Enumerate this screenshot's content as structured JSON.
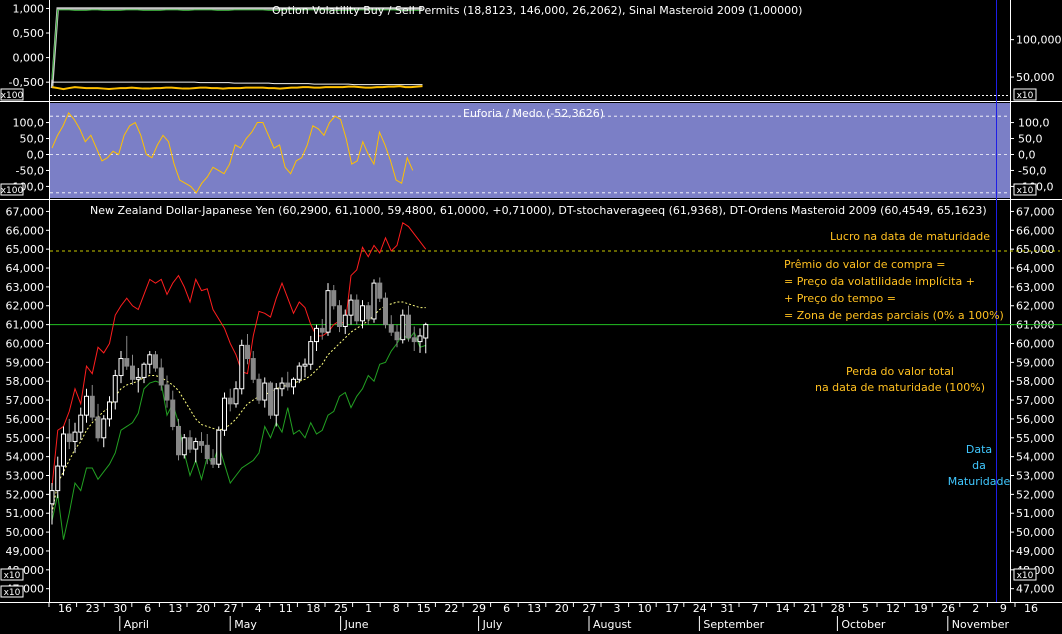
{
  "colors": {
    "background": "#000000",
    "panel_euforia": "#7b7fc6",
    "candle_up": "#ffffff",
    "candle_down": "#888888",
    "upper_band": "#ff1e1e",
    "lower_band": "#22a022",
    "midline": "#ffff80",
    "level_line": "#22c022",
    "target_line": "#c8c800",
    "maturity_line": "#1e1ee6",
    "annotation": "#ffc020",
    "maturity_text": "#40c8ff"
  },
  "chart_data": [
    {
      "id": "option_volatility",
      "type": "line",
      "title": "Option Volatility Buy / Sell Permits (18,8123, 146,000, 26,2062), Sinal Masteroid 2009 (1,00000)",
      "left_axis": {
        "ylim": [
          -0.7,
          1.05
        ],
        "ticks": [
          "1,000",
          "0,500",
          "0,000",
          "-0,500"
        ],
        "tick_values": [
          1.0,
          0.5,
          0.0,
          -0.5
        ],
        "multiplier": "x100"
      },
      "right_axis": {
        "ylim": [
          30,
          145
        ],
        "ticks": [
          "100,000",
          "50,000"
        ],
        "tick_values": [
          100,
          50
        ],
        "multiplier": "x10"
      },
      "series": [
        {
          "color": "#c8c8c8",
          "values": [
            -0.62,
            1.0,
            1.0,
            1.0,
            1.0,
            1.0,
            1.0,
            1.0,
            1.0,
            1.0,
            1.0,
            1.0,
            1.0,
            1.0,
            1.0,
            1.0,
            1.0,
            1.0,
            1.0,
            1.0,
            1.0,
            1.0,
            1.0,
            1.0,
            1.0,
            1.0,
            1.0,
            1.0,
            1.0,
            1.0,
            1.0,
            1.0,
            1.0,
            1.0,
            1.0,
            1.0,
            1.0,
            1.0,
            1.0,
            1.0,
            1.0,
            1.0,
            1.0,
            1.0,
            1.0,
            1.0,
            1.0,
            1.0,
            1.0,
            1.0,
            1.0,
            1.0,
            1.0,
            1.0,
            1.0,
            1.0,
            1.0,
            1.0,
            1.0,
            1.0,
            1.0,
            1.0,
            1.0,
            1.0,
            1.0,
            1.0
          ]
        },
        {
          "color": "#40b040",
          "values": [
            -0.45,
            0.97,
            0.97,
            0.97,
            0.96,
            0.96,
            0.96,
            0.97,
            0.97,
            0.96,
            0.96,
            0.96,
            0.96,
            0.97,
            0.97,
            0.97,
            0.96,
            0.96,
            0.96,
            0.96,
            0.97,
            0.97,
            0.97,
            0.96,
            0.96,
            0.97,
            0.97,
            0.97,
            0.97,
            0.96,
            0.96,
            0.96,
            0.97,
            0.97,
            0.97,
            0.97,
            0.97,
            0.97,
            0.96,
            0.96,
            0.96,
            0.97,
            0.97,
            0.97,
            0.97,
            0.97,
            0.97,
            0.97,
            0.97,
            0.96,
            0.96,
            0.96,
            0.96,
            0.97,
            0.97,
            0.97,
            0.97,
            0.97,
            0.97,
            0.97,
            0.97,
            0.96,
            0.96,
            0.96,
            0.96,
            0.96
          ]
        },
        {
          "color": "#f0f0f0",
          "values": [
            -0.5,
            -0.5,
            -0.5,
            -0.5,
            -0.5,
            -0.5,
            -0.5,
            -0.5,
            -0.5,
            -0.5,
            -0.5,
            -0.5,
            -0.5,
            -0.5,
            -0.5,
            -0.5,
            -0.5,
            -0.5,
            -0.5,
            -0.5,
            -0.5,
            -0.5,
            -0.5,
            -0.5,
            -0.5,
            -0.5,
            -0.51,
            -0.51,
            -0.51,
            -0.51,
            -0.51,
            -0.51,
            -0.52,
            -0.52,
            -0.52,
            -0.52,
            -0.52,
            -0.52,
            -0.52,
            -0.53,
            -0.53,
            -0.53,
            -0.53,
            -0.53,
            -0.53,
            -0.53,
            -0.54,
            -0.54,
            -0.54,
            -0.54,
            -0.54,
            -0.54,
            -0.54,
            -0.55,
            -0.55,
            -0.55,
            -0.55,
            -0.55,
            -0.55,
            -0.55,
            -0.55,
            -0.55,
            -0.55,
            -0.55,
            -0.55,
            -0.55
          ]
        },
        {
          "color": "#ffc000",
          "values": [
            -0.6,
            -0.62,
            -0.64,
            -0.62,
            -0.6,
            -0.61,
            -0.62,
            -0.62,
            -0.62,
            -0.63,
            -0.64,
            -0.63,
            -0.62,
            -0.62,
            -0.61,
            -0.62,
            -0.63,
            -0.63,
            -0.62,
            -0.62,
            -0.61,
            -0.61,
            -0.62,
            -0.63,
            -0.63,
            -0.62,
            -0.61,
            -0.61,
            -0.62,
            -0.62,
            -0.63,
            -0.62,
            -0.62,
            -0.62,
            -0.61,
            -0.61,
            -0.61,
            -0.61,
            -0.62,
            -0.62,
            -0.63,
            -0.62,
            -0.61,
            -0.61,
            -0.6,
            -0.6,
            -0.61,
            -0.61,
            -0.6,
            -0.6,
            -0.6,
            -0.6,
            -0.59,
            -0.59,
            -0.6,
            -0.61,
            -0.61,
            -0.6,
            -0.6,
            -0.59,
            -0.59,
            -0.58,
            -0.6,
            -0.6,
            -0.59,
            -0.58
          ]
        }
      ]
    },
    {
      "id": "euforia_medo",
      "type": "line",
      "title": "Euforia / Medo (-52,3626)",
      "ylim": [
        -130,
        155
      ],
      "ticks": [
        "100,0",
        "50,0",
        "0,0",
        "-50,0",
        "-100,0"
      ],
      "tick_values": [
        100,
        50,
        0,
        -50,
        -100
      ],
      "multiplier": "x100",
      "reference_lines": [
        120,
        0,
        -120
      ],
      "series": [
        {
          "color": "#ffc000",
          "values": [
            20,
            60,
            90,
            130,
            110,
            80,
            40,
            60,
            20,
            -20,
            -10,
            10,
            0,
            60,
            90,
            100,
            60,
            0,
            -10,
            30,
            60,
            40,
            -30,
            -80,
            -90,
            -100,
            -120,
            -90,
            -70,
            -40,
            -50,
            -60,
            -30,
            30,
            20,
            50,
            70,
            100,
            100,
            60,
            20,
            30,
            -40,
            -60,
            -20,
            -10,
            30,
            90,
            80,
            60,
            100,
            120,
            110,
            50,
            -30,
            -20,
            40,
            0,
            -30,
            70,
            30,
            -20,
            -80,
            -90,
            -10,
            -50
          ]
        }
      ]
    },
    {
      "id": "price",
      "type": "candlestick",
      "title": "New Zealand Dollar-Japanese Yen (60,2900, 61,1000, 59,4800, 61,0000, +0,71000), DT-stochaverageeq (61,9368), DT-Ordens Masteroid 2009 (60,4549, 65,1623)",
      "ylim": [
        46.4,
        67.5
      ],
      "left_ticks": [
        "67,000",
        "66,000",
        "65,000",
        "64,000",
        "63,000",
        "62,000",
        "61,000",
        "60,000",
        "59,000",
        "58,000",
        "57,000",
        "56,000",
        "55,000",
        "54,000",
        "53,000",
        "52,000",
        "51,000",
        "50,000",
        "49,000",
        "48,000",
        "47,000"
      ],
      "right_ticks": [
        "67,000",
        "66,000",
        "65,000",
        "64,000",
        "63,000",
        "62,000",
        "61,000",
        "60,000",
        "59,000",
        "58,000",
        "57,000",
        "56,000",
        "55,000",
        "54,000",
        "53,000",
        "52,000",
        "51,000",
        "50,000",
        "49,000",
        "48,000",
        "47,000"
      ],
      "tick_values": [
        67,
        66,
        65,
        64,
        63,
        62,
        61,
        60,
        59,
        58,
        57,
        56,
        55,
        54,
        53,
        52,
        51,
        50,
        49,
        48,
        47
      ],
      "multiplier": "x10",
      "levels": {
        "target": 64.9,
        "current": 61.0
      },
      "ohlc": [
        [
          51.5,
          52.6,
          50.4,
          52.2
        ],
        [
          52.2,
          54.0,
          51.8,
          53.5
        ],
        [
          53.5,
          55.6,
          53.0,
          55.2
        ],
        [
          55.2,
          56.0,
          54.4,
          54.8
        ],
        [
          54.8,
          55.8,
          54.2,
          55.3
        ],
        [
          55.3,
          56.6,
          54.9,
          56.2
        ],
        [
          56.2,
          57.6,
          55.8,
          57.2
        ],
        [
          57.2,
          57.8,
          55.9,
          56.1
        ],
        [
          56.1,
          56.8,
          54.8,
          55.0
        ],
        [
          55.0,
          56.2,
          54.5,
          56.0
        ],
        [
          56.0,
          57.2,
          55.6,
          56.9
        ],
        [
          56.9,
          58.6,
          56.5,
          58.3
        ],
        [
          58.3,
          59.6,
          57.9,
          59.2
        ],
        [
          59.2,
          60.4,
          58.6,
          58.8
        ],
        [
          58.8,
          59.4,
          57.8,
          58.1
        ],
        [
          58.1,
          58.7,
          57.4,
          58.2
        ],
        [
          58.2,
          59.0,
          57.9,
          58.9
        ],
        [
          58.9,
          59.6,
          58.4,
          59.4
        ],
        [
          59.4,
          59.6,
          58.5,
          58.7
        ],
        [
          58.7,
          59.2,
          57.5,
          57.8
        ],
        [
          57.8,
          58.3,
          56.6,
          57.0
        ],
        [
          57.0,
          57.5,
          55.4,
          55.6
        ],
        [
          55.6,
          56.0,
          53.8,
          54.1
        ],
        [
          54.1,
          55.2,
          53.9,
          55.0
        ],
        [
          55.0,
          55.4,
          54.2,
          54.4
        ],
        [
          54.4,
          55.0,
          53.7,
          54.8
        ],
        [
          54.8,
          55.3,
          54.2,
          54.6
        ],
        [
          54.6,
          55.2,
          53.6,
          53.9
        ],
        [
          53.9,
          54.4,
          53.4,
          53.6
        ],
        [
          53.6,
          55.6,
          53.4,
          55.4
        ],
        [
          55.4,
          57.4,
          55.1,
          57.1
        ],
        [
          57.1,
          57.6,
          56.4,
          56.8
        ],
        [
          56.8,
          58.0,
          56.6,
          57.6
        ],
        [
          57.6,
          60.2,
          57.3,
          59.9
        ],
        [
          59.9,
          60.5,
          58.9,
          59.2
        ],
        [
          59.2,
          59.6,
          57.9,
          58.1
        ],
        [
          58.1,
          58.4,
          56.8,
          57.0
        ],
        [
          57.0,
          58.2,
          56.6,
          57.9
        ],
        [
          57.9,
          58.0,
          56.0,
          56.2
        ],
        [
          56.2,
          57.9,
          55.6,
          57.6
        ],
        [
          57.6,
          58.2,
          57.2,
          57.9
        ],
        [
          57.9,
          58.5,
          57.5,
          57.7
        ],
        [
          57.7,
          58.2,
          57.3,
          58.1
        ],
        [
          58.1,
          59.0,
          57.9,
          58.8
        ],
        [
          58.8,
          59.2,
          58.2,
          58.9
        ],
        [
          58.9,
          60.4,
          58.6,
          60.1
        ],
        [
          60.1,
          61.0,
          59.6,
          60.8
        ],
        [
          60.8,
          61.3,
          60.2,
          60.6
        ],
        [
          60.6,
          63.2,
          60.4,
          62.8
        ],
        [
          62.8,
          63.1,
          61.8,
          62.0
        ],
        [
          62.0,
          62.3,
          60.6,
          60.9
        ],
        [
          60.9,
          61.8,
          60.5,
          61.5
        ],
        [
          61.5,
          62.6,
          61.0,
          62.3
        ],
        [
          62.3,
          62.6,
          61.0,
          61.2
        ],
        [
          61.2,
          62.3,
          60.8,
          62.0
        ],
        [
          62.0,
          62.2,
          61.0,
          61.3
        ],
        [
          61.3,
          63.4,
          61.1,
          63.2
        ],
        [
          63.2,
          63.5,
          62.2,
          62.4
        ],
        [
          62.4,
          62.7,
          60.8,
          61.0
        ],
        [
          61.0,
          61.5,
          60.4,
          60.6
        ],
        [
          60.6,
          61.0,
          59.8,
          60.2
        ],
        [
          60.2,
          61.8,
          60.0,
          61.5
        ],
        [
          61.5,
          62.0,
          60.1,
          60.3
        ],
        [
          60.3,
          60.9,
          59.6,
          60.1
        ],
        [
          60.1,
          60.8,
          59.5,
          60.4
        ],
        [
          60.29,
          61.1,
          59.48,
          61.0
        ]
      ],
      "upper_band": [
        52.4,
        55.4,
        55.6,
        56.4,
        57.6,
        56.8,
        58.8,
        58.4,
        59.8,
        59.5,
        60.0,
        61.5,
        62.0,
        62.4,
        62.0,
        61.8,
        62.6,
        63.4,
        63.2,
        63.4,
        62.6,
        63.2,
        63.6,
        63.0,
        62.2,
        63.4,
        62.8,
        62.9,
        61.8,
        61.3,
        60.8,
        60.0,
        59.4,
        58.5,
        58.4,
        60.4,
        61.7,
        61.6,
        61.4,
        62.4,
        63.2,
        62.4,
        61.6,
        62.2,
        61.9,
        61.0,
        60.4,
        60.4,
        60.6,
        61.0,
        61.2,
        61.0,
        63.6,
        63.9,
        65.1,
        64.6,
        65.2,
        64.8,
        65.6,
        64.9,
        65.2,
        66.4,
        66.2,
        65.8,
        65.4,
        65.0
      ],
      "lower_band": [
        50.6,
        52.0,
        49.6,
        51.0,
        52.6,
        52.2,
        53.4,
        53.4,
        52.8,
        53.2,
        53.6,
        54.2,
        55.4,
        55.6,
        55.8,
        56.3,
        57.6,
        57.9,
        58.0,
        57.9,
        56.2,
        56.8,
        55.8,
        54.2,
        53.0,
        53.8,
        52.8,
        54.0,
        53.6,
        54.6,
        53.6,
        52.6,
        53.0,
        53.4,
        53.6,
        53.8,
        54.2,
        55.6,
        55.0,
        55.8,
        55.3,
        56.6,
        55.2,
        55.4,
        55.0,
        55.8,
        55.2,
        55.4,
        56.2,
        56.4,
        57.2,
        57.4,
        56.6,
        57.2,
        57.6,
        58.3,
        58.0,
        58.9,
        59.0,
        59.6,
        60.0,
        60.5,
        60.2,
        60.6,
        59.8,
        59.9
      ],
      "midline": [
        51.0,
        52.6,
        53.2,
        53.8,
        54.4,
        54.8,
        55.4,
        55.8,
        56.1,
        56.4,
        56.6,
        57.2,
        57.6,
        57.8,
        57.9,
        58.0,
        58.2,
        58.3,
        58.3,
        58.2,
        58.0,
        57.8,
        57.5,
        57.0,
        56.5,
        56.0,
        55.7,
        55.6,
        55.5,
        55.4,
        55.5,
        55.7,
        56.0,
        56.4,
        56.8,
        57.0,
        57.2,
        57.3,
        57.4,
        57.6,
        57.7,
        57.8,
        57.9,
        58.0,
        58.1,
        58.3,
        58.6,
        58.9,
        59.4,
        59.7,
        60.0,
        60.3,
        60.6,
        60.8,
        61.0,
        61.2,
        61.5,
        61.8,
        62.0,
        62.1,
        62.2,
        62.2,
        62.1,
        62.0,
        61.9,
        61.9
      ]
    }
  ],
  "annotations": {
    "lucro": "Lucro na data de maturidade",
    "premio_lines": [
      "Prêmio do valor de compra =",
      "= Preço da volatilidade implícita +",
      "+ Preço do tempo =",
      "= Zona de perdas parciais (0% a 100%)"
    ],
    "perda_lines": [
      "Perda do valor total",
      "na data de maturidade (100%)"
    ],
    "maturidade_lines": [
      "Data",
      "da",
      "Maturidade"
    ]
  },
  "multipliers": {
    "top": "x100",
    "top_right": "x10",
    "mid": "x100",
    "mid_right": "x10",
    "price_right": "x10",
    "price_left": "x10",
    "bottom_left": "x10"
  },
  "x_axis": {
    "day_ticks": [
      "16",
      "23",
      "30",
      "6",
      "13",
      "20",
      "27",
      "4",
      "11",
      "18",
      "25",
      "1",
      "8",
      "15",
      "22",
      "29",
      "6",
      "13",
      "20",
      "27",
      "3",
      "10",
      "17",
      "24",
      "31",
      "7",
      "14",
      "21",
      "28",
      "5",
      "12",
      "19",
      "26",
      "2",
      "9",
      "16"
    ],
    "months": [
      "April",
      "May",
      "June",
      "July",
      "August",
      "September",
      "October",
      "November"
    ]
  }
}
